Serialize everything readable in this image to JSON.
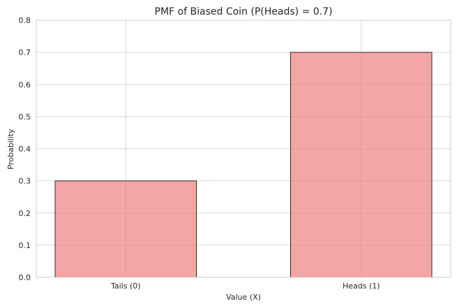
{
  "chart_data": {
    "type": "bar",
    "title": "PMF of Biased Coin (P(Heads) = 0.7)",
    "xlabel": "Value (X)",
    "ylabel": "Probability",
    "categories": [
      "Tails (0)",
      "Heads (1)"
    ],
    "values": [
      0.3,
      0.7
    ],
    "ylim": [
      0,
      0.8
    ],
    "yticks": [
      "0.0",
      "0.1",
      "0.2",
      "0.3",
      "0.4",
      "0.5",
      "0.6",
      "0.7",
      "0.8"
    ],
    "grid": true,
    "bar_color": "#f08080",
    "bar_edge_color": "#000000"
  }
}
